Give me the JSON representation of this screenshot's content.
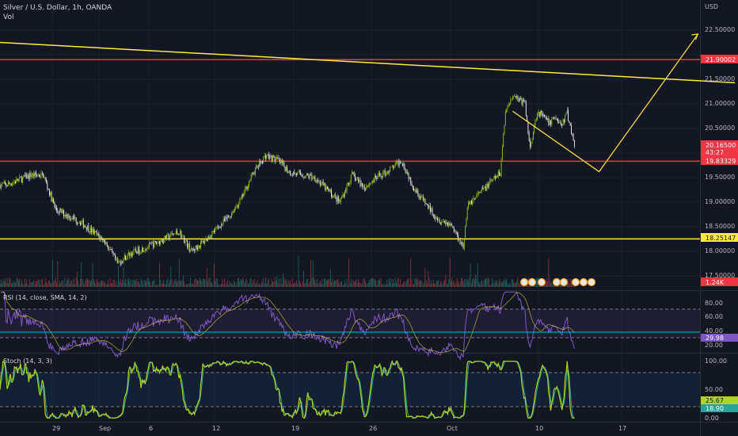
{
  "header": {
    "symbol_line": "Silver / U.S. Dollar, 1h, OANDA",
    "vol_label": "Vol",
    "currency": "USD"
  },
  "price_axis": {
    "ticks": [
      "22.50000",
      "22.00000",
      "21.50000",
      "21.00000",
      "20.50000",
      "19.50000",
      "19.00000",
      "18.50000",
      "18.00000",
      "17.50000"
    ]
  },
  "price_labels": {
    "level_upper_red": "21.90002",
    "last_price": "20.16500",
    "countdown": "43:27",
    "level_mid_red": "19.83329",
    "level_yellow": "18.25147",
    "volume": "1.24K"
  },
  "rsi": {
    "title": "RSI (14, close, SMA, 14, 2)",
    "ticks": [
      "80.00",
      "60.00",
      "40.00",
      "20.00"
    ],
    "value_label": "29.98"
  },
  "stoch": {
    "title": "Stoch (14, 3, 3)",
    "ticks": [
      "100.00",
      "50.00",
      "0.00"
    ],
    "k_label": "25.67",
    "d_label": "18.90"
  },
  "time_axis": {
    "ticks": [
      "29",
      "Sep",
      "6",
      "12",
      "19",
      "26",
      "Oct",
      "10",
      "17"
    ]
  },
  "colors": {
    "background": "#131722",
    "candle_up": "#8ec400",
    "candle_down": "#f0f0f0",
    "red_line": "#f23645",
    "yellow_line": "#ffeb3b",
    "rsi_line": "#7e57c2",
    "stoch_k": "#b5d126",
    "stoch_d": "#26a69a",
    "vol_up": "#26a69a",
    "vol_down": "#ef5350"
  },
  "chart_data": {
    "type": "candlestick",
    "x_start": "2020-08-24",
    "x_end": "2020-10-09",
    "close_points": [
      {
        "date": "2020-08-24",
        "price": 19.35
      },
      {
        "date": "2020-08-26",
        "price": 19.55
      },
      {
        "date": "2020-08-27",
        "price": 19.55
      },
      {
        "date": "2020-08-28",
        "price": 18.85
      },
      {
        "date": "2020-08-30",
        "price": 18.6
      },
      {
        "date": "2020-09-01",
        "price": 18.2
      },
      {
        "date": "2020-09-02",
        "price": 17.75
      },
      {
        "date": "2020-09-03",
        "price": 17.95
      },
      {
        "date": "2020-09-05",
        "price": 18.15
      },
      {
        "date": "2020-09-07",
        "price": 18.4
      },
      {
        "date": "2020-09-08",
        "price": 18.0
      },
      {
        "date": "2020-09-09",
        "price": 18.2
      },
      {
        "date": "2020-09-11",
        "price": 18.7
      },
      {
        "date": "2020-09-12",
        "price": 19.05
      },
      {
        "date": "2020-09-13",
        "price": 19.6
      },
      {
        "date": "2020-09-14",
        "price": 19.95
      },
      {
        "date": "2020-09-15",
        "price": 19.85
      },
      {
        "date": "2020-09-16",
        "price": 19.6
      },
      {
        "date": "2020-09-18",
        "price": 19.5
      },
      {
        "date": "2020-09-20",
        "price": 19.0
      },
      {
        "date": "2020-09-21",
        "price": 19.55
      },
      {
        "date": "2020-09-22",
        "price": 19.3
      },
      {
        "date": "2020-09-23",
        "price": 19.5
      },
      {
        "date": "2020-09-24",
        "price": 19.65
      },
      {
        "date": "2020-09-25",
        "price": 19.85
      },
      {
        "date": "2020-09-26",
        "price": 19.3
      },
      {
        "date": "2020-09-27",
        "price": 18.95
      },
      {
        "date": "2020-09-28",
        "price": 18.65
      },
      {
        "date": "2020-09-29",
        "price": 18.55
      },
      {
        "date": "2020-09-30",
        "price": 18.1
      },
      {
        "date": "2020-09-30",
        "price": 18.95
      },
      {
        "date": "2020-10-01",
        "price": 19.1
      },
      {
        "date": "2020-10-02",
        "price": 19.35
      },
      {
        "date": "2020-10-03",
        "price": 19.6
      },
      {
        "date": "2020-10-03",
        "price": 20.8
      },
      {
        "date": "2020-10-04",
        "price": 21.2
      },
      {
        "date": "2020-10-05",
        "price": 21.0
      },
      {
        "date": "2020-10-05",
        "price": 20.1
      },
      {
        "date": "2020-10-06",
        "price": 20.85
      },
      {
        "date": "2020-10-07",
        "price": 20.6
      },
      {
        "date": "2020-10-07",
        "price": 20.75
      },
      {
        "date": "2020-10-08",
        "price": 20.55
      },
      {
        "date": "2020-10-08",
        "price": 20.85
      },
      {
        "date": "2020-10-09",
        "price": 20.165
      }
    ],
    "horizontal_levels": [
      21.90002,
      19.83329,
      18.25147
    ],
    "trendline": {
      "from": {
        "date": "2020-08-24",
        "price": 22.25
      },
      "to": {
        "date": "2020-10-22",
        "price": 21.43
      }
    },
    "projection": [
      {
        "date": "2020-10-04",
        "price": 20.85
      },
      {
        "date": "2020-10-11",
        "price": 19.62
      },
      {
        "date": "2020-10-19",
        "price": 22.42
      }
    ],
    "rsi": {
      "last": 29.98,
      "band_upper": 70,
      "band_lower": 30
    },
    "stoch": {
      "k_last": 25.67,
      "d_last": 18.9,
      "band_upper": 80,
      "band_lower": 20
    }
  }
}
